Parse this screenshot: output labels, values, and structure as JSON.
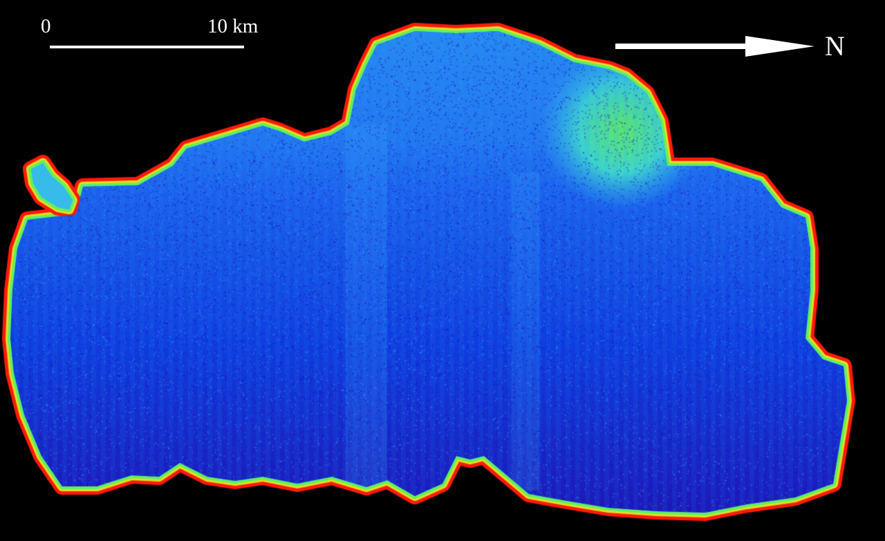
{
  "scale_bar": {
    "start_label": "0",
    "end_label": "10 km"
  },
  "north_arrow": {
    "label": "N",
    "icon": "north-arrow-icon"
  },
  "map": {
    "background_color": "#000000",
    "palette": [
      "#1a00b0",
      "#0a2cdc",
      "#1e64f0",
      "#2fa8f0",
      "#3fd8c8",
      "#60f060",
      "#e0e020",
      "#ff2a10"
    ],
    "shoreline_color": "#ff1a0a",
    "label_color": "#ffffff"
  }
}
